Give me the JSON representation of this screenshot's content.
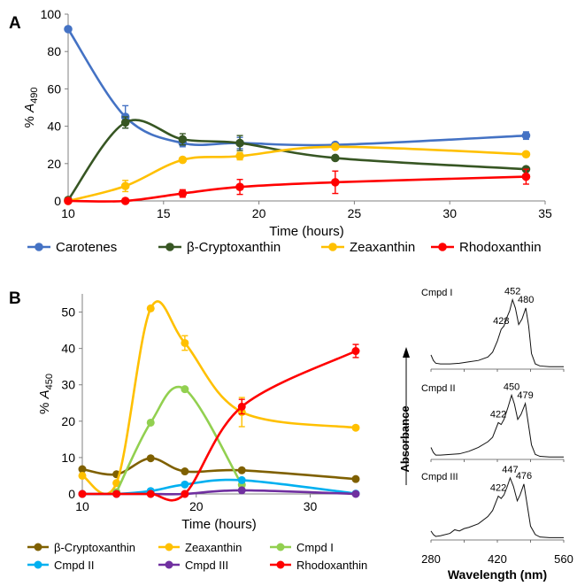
{
  "panel_labels": [
    "A",
    "B"
  ],
  "colors": {
    "blue": "#4472C4",
    "darkgreen": "#375623",
    "yellow": "#FFC000",
    "red": "#FF0000",
    "olive": "#7F6000",
    "lightgreen": "#92D050",
    "cyan": "#00B0F0",
    "purple": "#7030A0",
    "axis": "#808080"
  },
  "chart_data": [
    {
      "id": "A",
      "type": "line",
      "xlabel": "Time (hours)",
      "ylabel_prefix": "% ",
      "ylabel_var": "A",
      "ylabel_sub": "490",
      "xlim": [
        10,
        35
      ],
      "ylim": [
        0,
        100
      ],
      "xticks": [
        "10",
        "15",
        "20",
        "25",
        "30",
        "35"
      ],
      "yticks": [
        "0",
        "20",
        "40",
        "60",
        "80",
        "100"
      ],
      "grid": false,
      "legend_position": "bottom",
      "series": [
        {
          "name": "Carotenes",
          "color": "blue",
          "x": [
            10,
            13,
            16,
            19,
            24,
            34
          ],
          "y": [
            92,
            45,
            31,
            31,
            30,
            35
          ],
          "err": [
            0,
            6,
            2,
            3,
            1,
            2
          ]
        },
        {
          "name": "β-Cryptoxanthin",
          "color": "darkgreen",
          "x": [
            10,
            13,
            16,
            19,
            24,
            34
          ],
          "y": [
            0.5,
            42,
            33,
            31,
            23,
            17
          ],
          "err": [
            0,
            3,
            3,
            4,
            0,
            1
          ]
        },
        {
          "name": "Zeaxanthin",
          "color": "yellow",
          "x": [
            10,
            13,
            16,
            19,
            24,
            34
          ],
          "y": [
            0,
            8,
            22,
            24,
            29,
            25
          ],
          "err": [
            0,
            3,
            1,
            2,
            1,
            1
          ]
        },
        {
          "name": "Rhodoxanthin",
          "color": "red",
          "x": [
            10,
            13,
            16,
            19,
            24,
            34
          ],
          "y": [
            0,
            0,
            4,
            7.5,
            10,
            13
          ],
          "err": [
            0,
            0,
            2,
            4,
            6,
            4
          ]
        }
      ]
    },
    {
      "id": "B",
      "type": "line",
      "xlabel": "Time (hours)",
      "ylabel_prefix": "% ",
      "ylabel_var": "A",
      "ylabel_sub": "450",
      "xlim": [
        10,
        34
      ],
      "ylim": [
        0,
        55
      ],
      "xticks": [
        "10",
        "20",
        "30"
      ],
      "yticks": [
        "0",
        "10",
        "20",
        "30",
        "40",
        "50"
      ],
      "grid": false,
      "legend_position": "bottom",
      "series": [
        {
          "name": "β-Cryptoxanthin",
          "color": "olive",
          "x": [
            10,
            13,
            16,
            19,
            24,
            34
          ],
          "y": [
            6.8,
            5.4,
            9.8,
            6.2,
            6.5,
            4.1
          ],
          "err": [
            0,
            0,
            0,
            0,
            0,
            0
          ]
        },
        {
          "name": "Zeaxanthin",
          "color": "yellow",
          "x": [
            10,
            13,
            16,
            19,
            24,
            34
          ],
          "y": [
            5,
            3,
            51,
            41.5,
            22.5,
            18.2
          ],
          "err": [
            0,
            0,
            0,
            2,
            4,
            0
          ]
        },
        {
          "name": "Cmpd I",
          "color": "lightgreen",
          "x": [
            13,
            16,
            19,
            24
          ],
          "y": [
            0.5,
            19.6,
            28.8,
            2.5
          ],
          "err": [
            0,
            0,
            0,
            0
          ]
        },
        {
          "name": "Cmpd II",
          "color": "cyan",
          "x": [
            10,
            13,
            16,
            19,
            24,
            34
          ],
          "y": [
            0,
            0,
            0.8,
            2.6,
            3.8,
            0.1
          ],
          "err": [
            0,
            0,
            0,
            0,
            0,
            0
          ]
        },
        {
          "name": "Cmpd III",
          "color": "purple",
          "x": [
            10,
            13,
            16,
            19,
            24,
            34
          ],
          "y": [
            0,
            0,
            0,
            0,
            1,
            0
          ],
          "err": [
            0,
            0,
            0,
            0,
            0,
            0
          ]
        },
        {
          "name": "Rhodoxanthin",
          "color": "red",
          "x": [
            10,
            13,
            16,
            19,
            24,
            34
          ],
          "y": [
            0,
            0,
            0,
            0,
            24,
            39.3
          ],
          "err": [
            0,
            0,
            0,
            0,
            2,
            1.8
          ]
        }
      ]
    },
    {
      "id": "B-spectra",
      "type": "line",
      "xlabel": "Wavelength (nm)",
      "ylabel": "Absorbance",
      "xlim": [
        280,
        560
      ],
      "xticks": [
        "280",
        "420",
        "560"
      ],
      "xtick_minor": [
        "350",
        "490"
      ],
      "grid": false,
      "spectra": [
        {
          "name": "Cmpd I",
          "peaks": [
            {
              "x": 428,
              "label": "428"
            },
            {
              "x": 452,
              "label": "452"
            },
            {
              "x": 480,
              "label": "480"
            }
          ],
          "x": [
            280,
            285,
            290,
            300,
            320,
            340,
            360,
            380,
            400,
            410,
            420,
            428,
            434,
            440,
            446,
            452,
            458,
            465,
            472,
            480,
            486,
            492,
            500,
            510,
            530,
            560
          ],
          "y": [
            0.18,
            0.1,
            0.06,
            0.05,
            0.05,
            0.06,
            0.08,
            0.1,
            0.15,
            0.22,
            0.38,
            0.55,
            0.6,
            0.72,
            0.82,
            0.98,
            0.86,
            0.62,
            0.7,
            0.86,
            0.6,
            0.2,
            0.05,
            0.02,
            0.01,
            0.01
          ]
        },
        {
          "name": "Cmpd II",
          "peaks": [
            {
              "x": 422,
              "label": "422"
            },
            {
              "x": 450,
              "label": "450"
            },
            {
              "x": 479,
              "label": "479"
            }
          ],
          "x": [
            280,
            285,
            290,
            300,
            320,
            340,
            360,
            380,
            400,
            410,
            422,
            428,
            434,
            442,
            450,
            456,
            463,
            470,
            479,
            486,
            492,
            500,
            510,
            530,
            560
          ],
          "y": [
            0.16,
            0.08,
            0.04,
            0.04,
            0.05,
            0.06,
            0.1,
            0.16,
            0.25,
            0.32,
            0.55,
            0.52,
            0.6,
            0.78,
            0.98,
            0.84,
            0.6,
            0.68,
            0.85,
            0.5,
            0.2,
            0.05,
            0.02,
            0.01,
            0.01
          ]
        },
        {
          "name": "Cmpd III",
          "peaks": [
            {
              "x": 422,
              "label": "422"
            },
            {
              "x": 447,
              "label": "447"
            },
            {
              "x": 476,
              "label": "476"
            }
          ],
          "x": [
            280,
            285,
            290,
            300,
            320,
            330,
            340,
            350,
            360,
            380,
            400,
            410,
            422,
            428,
            434,
            440,
            447,
            454,
            462,
            468,
            476,
            484,
            490,
            500,
            510,
            530,
            560
          ],
          "y": [
            0.12,
            0.06,
            0.03,
            0.04,
            0.08,
            0.14,
            0.12,
            0.16,
            0.18,
            0.24,
            0.36,
            0.46,
            0.7,
            0.66,
            0.72,
            0.84,
            1.0,
            0.86,
            0.62,
            0.72,
            0.9,
            0.5,
            0.2,
            0.06,
            0.02,
            0.01,
            0.01
          ]
        }
      ]
    }
  ]
}
